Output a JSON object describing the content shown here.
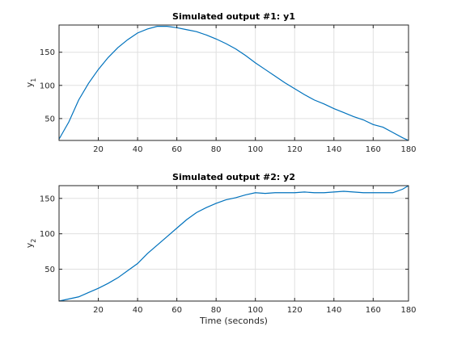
{
  "chart_data": [
    {
      "type": "line",
      "title": "Simulated output #1: y1",
      "xlabel": "",
      "ylabel": "y",
      "ylabel_subscript": "1",
      "xlim": [
        0,
        178
      ],
      "ylim": [
        17,
        191
      ],
      "xticks": [
        20,
        40,
        60,
        80,
        100,
        120,
        140,
        160,
        180
      ],
      "yticks": [
        50,
        100,
        150
      ],
      "grid": true,
      "color": "#0072bd",
      "series": [
        {
          "x": [
            0,
            5,
            10,
            15,
            20,
            25,
            30,
            35,
            40,
            45,
            50,
            55,
            60,
            65,
            70,
            75,
            80,
            85,
            90,
            95,
            100,
            105,
            110,
            115,
            120,
            125,
            130,
            135,
            140,
            145,
            150,
            155,
            160,
            165,
            170,
            175,
            178
          ],
          "values": [
            19,
            45,
            78,
            103,
            124,
            142,
            157,
            169,
            179,
            185,
            189,
            189,
            187,
            184,
            181,
            176,
            170,
            163,
            155,
            145,
            134,
            124,
            114,
            104,
            95,
            86,
            78,
            72,
            65,
            59,
            53,
            48,
            41,
            37,
            29,
            21,
            17
          ]
        }
      ]
    },
    {
      "type": "line",
      "title": "Simulated output #2: y2",
      "xlabel": "Time (seconds)",
      "ylabel": "y",
      "ylabel_subscript": "2",
      "xlim": [
        0,
        178
      ],
      "ylim": [
        5,
        168
      ],
      "xticks": [
        20,
        40,
        60,
        80,
        100,
        120,
        140,
        160,
        180
      ],
      "yticks": [
        50,
        100,
        150
      ],
      "grid": true,
      "color": "#0072bd",
      "series": [
        {
          "x": [
            0,
            5,
            10,
            15,
            20,
            25,
            30,
            35,
            40,
            45,
            50,
            55,
            60,
            65,
            70,
            75,
            80,
            85,
            90,
            95,
            100,
            105,
            110,
            115,
            120,
            125,
            130,
            135,
            140,
            145,
            150,
            155,
            160,
            165,
            170,
            175,
            178
          ],
          "values": [
            5,
            8,
            11,
            17,
            23,
            30,
            38,
            48,
            58,
            72,
            84,
            96,
            108,
            120,
            130,
            137,
            143,
            148,
            151,
            155,
            158,
            157,
            158,
            158,
            158,
            159,
            158,
            158,
            159,
            160,
            159,
            158,
            158,
            158,
            158,
            163,
            168
          ]
        }
      ]
    }
  ]
}
